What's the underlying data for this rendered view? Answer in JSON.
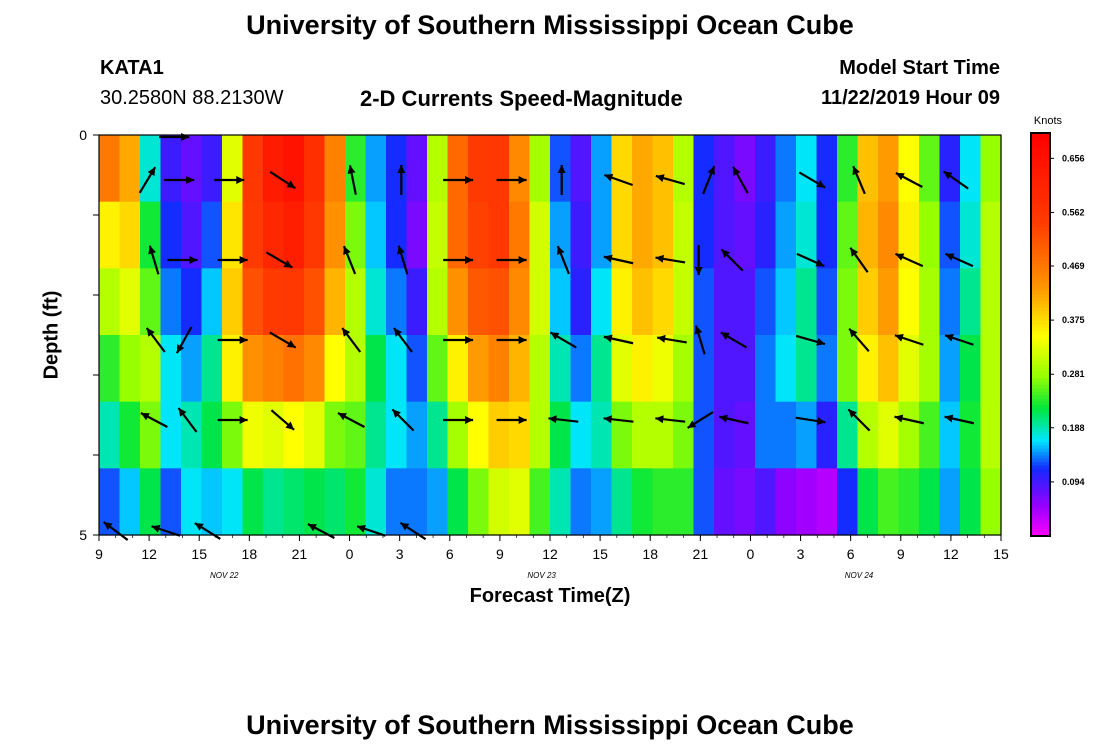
{
  "header": {
    "title": "University of Southern Mississippi Ocean Cube",
    "station": "KATA1",
    "coords": "30.2580N 88.2130W",
    "subtitle": "2-D Currents Speed-Magnitude",
    "start_label": "Model Start Time",
    "start_value": "11/22/2019 Hour 09"
  },
  "footer": {
    "title": "University of Southern Mississippi Ocean Cube"
  },
  "chart_data": {
    "type": "heatmap",
    "title": "2-D Currents Speed-Magnitude",
    "xlabel": "Forecast Time(Z)",
    "ylabel": "Depth (ft)",
    "x_ticks": [
      "9",
      "12",
      "15",
      "18",
      "21",
      "0",
      "3",
      "6",
      "9",
      "12",
      "15",
      "18",
      "21",
      "0",
      "3",
      "6",
      "9",
      "12",
      "15"
    ],
    "x_tick_hours": [
      9,
      12,
      15,
      18,
      21,
      24,
      27,
      30,
      33,
      36,
      39,
      42,
      45,
      48,
      51,
      54,
      57,
      60,
      63
    ],
    "date_labels": [
      {
        "label": "NOV 22",
        "hour": 16.5
      },
      {
        "label": "NOV 23",
        "hour": 35.5
      },
      {
        "label": "NOV 24",
        "hour": 54.5
      }
    ],
    "y_ticks": [
      "0",
      "5"
    ],
    "ylim": [
      0,
      5
    ],
    "xlim": [
      9,
      63
    ],
    "colorbar": {
      "title": "Knots",
      "ticks": [
        "0.656",
        "0.562",
        "0.469",
        "0.375",
        "0.281",
        "0.188",
        "0.094"
      ],
      "range": [
        0,
        0.7
      ]
    },
    "depth_rows": [
      0,
      1,
      2,
      3,
      4,
      5
    ],
    "speed_columns": [
      [
        0.47,
        0.36,
        0.3,
        0.24,
        0.19,
        0.13
      ],
      [
        0.42,
        0.38,
        0.33,
        0.28,
        0.23,
        0.16
      ],
      [
        0.18,
        0.23,
        0.26,
        0.3,
        0.27,
        0.22
      ],
      [
        0.1,
        0.12,
        0.14,
        0.17,
        0.17,
        0.13
      ],
      [
        0.08,
        0.09,
        0.12,
        0.15,
        0.19,
        0.17
      ],
      [
        0.1,
        0.13,
        0.16,
        0.2,
        0.22,
        0.16
      ],
      [
        0.33,
        0.37,
        0.39,
        0.36,
        0.27,
        0.17
      ],
      [
        0.56,
        0.55,
        0.52,
        0.44,
        0.34,
        0.22
      ],
      [
        0.63,
        0.6,
        0.55,
        0.46,
        0.33,
        0.2
      ],
      [
        0.65,
        0.62,
        0.56,
        0.48,
        0.35,
        0.21
      ],
      [
        0.58,
        0.56,
        0.52,
        0.45,
        0.33,
        0.22
      ],
      [
        0.46,
        0.44,
        0.41,
        0.35,
        0.27,
        0.21
      ],
      [
        0.24,
        0.27,
        0.3,
        0.3,
        0.26,
        0.23
      ],
      [
        0.15,
        0.16,
        0.18,
        0.22,
        0.2,
        0.18
      ],
      [
        0.12,
        0.12,
        0.14,
        0.17,
        0.17,
        0.14
      ],
      [
        0.08,
        0.07,
        0.1,
        0.13,
        0.15,
        0.14
      ],
      [
        0.3,
        0.31,
        0.3,
        0.26,
        0.2,
        0.15
      ],
      [
        0.49,
        0.49,
        0.44,
        0.36,
        0.29,
        0.22
      ],
      [
        0.55,
        0.54,
        0.51,
        0.43,
        0.35,
        0.27
      ],
      [
        0.56,
        0.56,
        0.52,
        0.46,
        0.39,
        0.32
      ],
      [
        0.45,
        0.47,
        0.45,
        0.41,
        0.38,
        0.33
      ],
      [
        0.29,
        0.32,
        0.32,
        0.3,
        0.3,
        0.25
      ],
      [
        0.13,
        0.15,
        0.16,
        0.19,
        0.22,
        0.19
      ],
      [
        0.09,
        0.1,
        0.11,
        0.14,
        0.17,
        0.14
      ],
      [
        0.15,
        0.15,
        0.17,
        0.2,
        0.19,
        0.15
      ],
      [
        0.38,
        0.38,
        0.36,
        0.33,
        0.27,
        0.2
      ],
      [
        0.42,
        0.42,
        0.4,
        0.36,
        0.3,
        0.23
      ],
      [
        0.4,
        0.4,
        0.38,
        0.34,
        0.3,
        0.24
      ],
      [
        0.3,
        0.31,
        0.31,
        0.29,
        0.27,
        0.24
      ],
      [
        0.12,
        0.12,
        0.13,
        0.13,
        0.13,
        0.13
      ],
      [
        0.09,
        0.09,
        0.09,
        0.09,
        0.09,
        0.08
      ],
      [
        0.07,
        0.08,
        0.09,
        0.09,
        0.08,
        0.07
      ],
      [
        0.1,
        0.11,
        0.13,
        0.14,
        0.14,
        0.09
      ],
      [
        0.14,
        0.15,
        0.16,
        0.17,
        0.14,
        0.06
      ],
      [
        0.17,
        0.18,
        0.2,
        0.2,
        0.15,
        0.05
      ],
      [
        0.12,
        0.12,
        0.13,
        0.14,
        0.11,
        0.04
      ],
      [
        0.24,
        0.26,
        0.27,
        0.27,
        0.2,
        0.12
      ],
      [
        0.4,
        0.41,
        0.39,
        0.36,
        0.3,
        0.22
      ],
      [
        0.43,
        0.45,
        0.43,
        0.4,
        0.33,
        0.25
      ],
      [
        0.35,
        0.36,
        0.35,
        0.33,
        0.29,
        0.24
      ],
      [
        0.26,
        0.28,
        0.29,
        0.29,
        0.25,
        0.22
      ],
      [
        0.11,
        0.13,
        0.14,
        0.15,
        0.16,
        0.15
      ],
      [
        0.17,
        0.18,
        0.2,
        0.22,
        0.23,
        0.22
      ],
      [
        0.28,
        0.3,
        0.3,
        0.3,
        0.3,
        0.28
      ]
    ],
    "arrow_rows": [
      {
        "depth": 0,
        "arrows": [
          [
            13.5,
            1.0,
            0.0
          ]
        ]
      },
      {
        "depth": 1,
        "arrows": [
          [
            11.9,
            0.6,
            -1.0
          ],
          [
            13.8,
            1.0,
            0.0
          ],
          [
            16.8,
            1.0,
            0.0
          ],
          [
            20.0,
            0.85,
            0.55
          ],
          [
            24.2,
            -0.2,
            -1.0
          ],
          [
            27.1,
            0.0,
            -1.0
          ],
          [
            30.5,
            1.0,
            0.0
          ],
          [
            33.7,
            1.0,
            0.0
          ],
          [
            36.7,
            0.0,
            -1.0
          ],
          [
            40.1,
            -0.85,
            -0.3
          ],
          [
            43.2,
            -0.9,
            -0.25
          ],
          [
            45.5,
            0.4,
            -1.0
          ],
          [
            47.4,
            -0.5,
            -0.9
          ],
          [
            51.7,
            0.85,
            0.5
          ],
          [
            54.5,
            -0.4,
            -0.95
          ],
          [
            57.5,
            -0.85,
            -0.45
          ],
          [
            60.3,
            -0.85,
            -0.6
          ]
        ]
      },
      {
        "depth": 2,
        "arrows": [
          [
            12.3,
            -0.3,
            -1.0
          ],
          [
            14.0,
            1.0,
            0.0
          ],
          [
            17.0,
            1.0,
            0.0
          ],
          [
            19.8,
            0.85,
            0.5
          ],
          [
            24.0,
            -0.4,
            -1.0
          ],
          [
            27.2,
            -0.3,
            -1.0
          ],
          [
            30.5,
            1.0,
            0.0
          ],
          [
            33.7,
            1.0,
            0.0
          ],
          [
            36.8,
            -0.4,
            -1.0
          ],
          [
            40.1,
            -0.9,
            -0.2
          ],
          [
            43.2,
            -0.9,
            -0.15
          ],
          [
            44.9,
            0.0,
            1.0
          ],
          [
            46.9,
            -0.7,
            -0.7
          ],
          [
            51.6,
            0.9,
            0.4
          ],
          [
            54.5,
            -0.6,
            -0.85
          ],
          [
            57.5,
            -0.9,
            -0.4
          ],
          [
            60.5,
            -0.9,
            -0.4
          ]
        ]
      },
      {
        "depth": 3,
        "arrows": [
          [
            12.4,
            -0.6,
            -0.8
          ],
          [
            14.1,
            -0.5,
            0.9
          ],
          [
            17.0,
            1.0,
            0.0
          ],
          [
            20.0,
            0.85,
            0.5
          ],
          [
            24.1,
            -0.6,
            -0.8
          ],
          [
            27.2,
            -0.6,
            -0.8
          ],
          [
            30.5,
            1.0,
            0.0
          ],
          [
            33.7,
            1.0,
            0.0
          ],
          [
            36.8,
            -0.85,
            -0.5
          ],
          [
            40.1,
            -0.9,
            -0.2
          ],
          [
            43.3,
            -0.9,
            -0.15
          ],
          [
            45.0,
            -0.3,
            -1.0
          ],
          [
            47.0,
            -0.85,
            -0.5
          ],
          [
            51.6,
            0.9,
            0.25
          ],
          [
            54.5,
            -0.65,
            -0.75
          ],
          [
            57.5,
            -0.9,
            -0.3
          ],
          [
            60.5,
            -0.9,
            -0.3
          ]
        ]
      },
      {
        "depth": 4,
        "arrows": [
          [
            12.3,
            -0.85,
            -0.45
          ],
          [
            14.3,
            -0.6,
            -0.8
          ],
          [
            17.0,
            1.0,
            0.0
          ],
          [
            20.0,
            0.75,
            0.65
          ],
          [
            24.1,
            -0.85,
            -0.45
          ],
          [
            27.2,
            -0.7,
            -0.7
          ],
          [
            30.5,
            1.0,
            0.0
          ],
          [
            33.7,
            1.0,
            0.0
          ],
          [
            36.8,
            -0.9,
            -0.1
          ],
          [
            40.1,
            -0.9,
            -0.1
          ],
          [
            43.2,
            -0.9,
            -0.1
          ],
          [
            45.0,
            -0.8,
            0.5
          ],
          [
            47.0,
            -0.9,
            -0.2
          ],
          [
            51.6,
            0.95,
            0.15
          ],
          [
            54.5,
            -0.7,
            -0.7
          ],
          [
            57.5,
            -0.9,
            -0.2
          ],
          [
            60.5,
            -0.9,
            -0.2
          ]
        ]
      },
      {
        "depth": 5,
        "arrows": [
          [
            10.0,
            -0.8,
            -0.6
          ],
          [
            13.0,
            -0.9,
            -0.3
          ],
          [
            15.5,
            -0.8,
            -0.5
          ],
          [
            22.3,
            -0.85,
            -0.45
          ],
          [
            25.3,
            -0.9,
            -0.3
          ],
          [
            27.8,
            -0.85,
            -0.55
          ]
        ]
      }
    ]
  }
}
